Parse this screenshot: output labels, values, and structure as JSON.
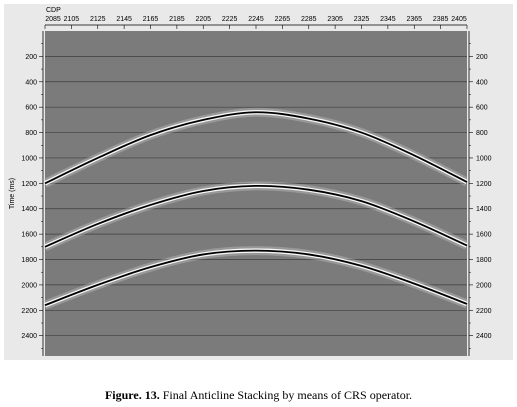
{
  "chart_data": {
    "type": "line",
    "top_axis_label": "CDP",
    "x_ticks": [
      "2085",
      "2105",
      "2125",
      "2145",
      "2165",
      "2185",
      "2205",
      "2225",
      "2245",
      "2265",
      "2285",
      "2305",
      "2325",
      "2345",
      "2365",
      "2385",
      "2405"
    ],
    "x_range": [
      2085,
      2405
    ],
    "ylabel": "Time (ms)",
    "y_ticks": [
      200,
      400,
      600,
      800,
      1000,
      1200,
      1400,
      1600,
      1800,
      2000,
      2200,
      2400
    ],
    "y_range": [
      0,
      2560
    ],
    "y_inverted": true,
    "grid": true,
    "series": [
      {
        "x": [
          2085,
          2125,
          2165,
          2205,
          2245,
          2285,
          2325,
          2365,
          2405
        ],
        "values": [
          1200,
          1000,
          820,
          700,
          640,
          690,
          800,
          980,
          1190
        ]
      },
      {
        "x": [
          2085,
          2125,
          2165,
          2205,
          2245,
          2285,
          2325,
          2365,
          2405
        ],
        "values": [
          1700,
          1520,
          1370,
          1260,
          1220,
          1250,
          1340,
          1500,
          1690
        ]
      },
      {
        "x": [
          2085,
          2125,
          2165,
          2205,
          2245,
          2285,
          2325,
          2365,
          2405
        ],
        "values": [
          2160,
          2000,
          1860,
          1760,
          1730,
          1760,
          1850,
          1990,
          2150
        ]
      }
    ],
    "colors": {
      "panel": "#7b7b7b",
      "frame": "#e9e9e9",
      "reflector": "#000000",
      "halo": "#ffffff",
      "grid": "#3c3c3c"
    }
  },
  "caption": {
    "label": "Figure. 13.",
    "text": " Final Anticline Stacking by means of CRS operator."
  }
}
